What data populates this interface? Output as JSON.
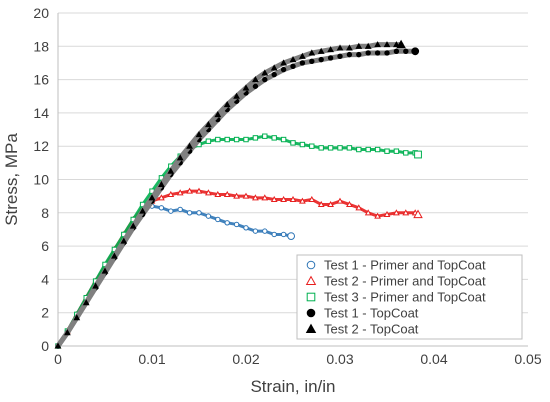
{
  "chart_data": {
    "type": "scatter",
    "xlabel": "Strain, in/in",
    "ylabel": "Stress, MPa",
    "xlim": [
      0,
      0.05
    ],
    "ylim": [
      0,
      20
    ],
    "x_ticks": [
      0,
      0.01,
      0.02,
      0.03,
      0.04,
      0.05
    ],
    "x_tick_labels": [
      "0",
      "0.01",
      "0.02",
      "0.03",
      "0.04",
      "0.05"
    ],
    "y_ticks": [
      0,
      2,
      4,
      6,
      8,
      10,
      12,
      14,
      16,
      18,
      20
    ],
    "y_tick_labels": [
      "0",
      "2",
      "4",
      "6",
      "8",
      "10",
      "12",
      "14",
      "16",
      "18",
      "20"
    ],
    "grid": "horizontal",
    "legend_position": "bottom-right",
    "series": [
      {
        "name": "Test 1 - Primer and TopCoat",
        "marker": "circle-open",
        "color": "#2e75b6",
        "points": [
          [
            0,
            0
          ],
          [
            0.001,
            0.9
          ],
          [
            0.002,
            1.9
          ],
          [
            0.003,
            2.9
          ],
          [
            0.004,
            3.9
          ],
          [
            0.005,
            4.8
          ],
          [
            0.006,
            5.7
          ],
          [
            0.007,
            6.6
          ],
          [
            0.008,
            7.4
          ],
          [
            0.009,
            8.1
          ],
          [
            0.0095,
            8.4
          ],
          [
            0.01,
            8.4
          ],
          [
            0.011,
            8.3
          ],
          [
            0.012,
            8.1
          ],
          [
            0.013,
            8.2
          ],
          [
            0.014,
            8.0
          ],
          [
            0.015,
            8.0
          ],
          [
            0.016,
            7.8
          ],
          [
            0.017,
            7.6
          ],
          [
            0.018,
            7.4
          ],
          [
            0.019,
            7.3
          ],
          [
            0.02,
            7.1
          ],
          [
            0.021,
            6.9
          ],
          [
            0.022,
            6.9
          ],
          [
            0.023,
            6.7
          ],
          [
            0.024,
            6.7
          ],
          [
            0.0248,
            6.6
          ]
        ]
      },
      {
        "name": "Test 2 - Primer and TopCoat",
        "marker": "triangle-open",
        "color": "#e81f1f",
        "points": [
          [
            0,
            0
          ],
          [
            0.001,
            0.9
          ],
          [
            0.002,
            1.9
          ],
          [
            0.003,
            2.9
          ],
          [
            0.004,
            3.9
          ],
          [
            0.005,
            4.8
          ],
          [
            0.006,
            5.8
          ],
          [
            0.007,
            6.7
          ],
          [
            0.008,
            7.6
          ],
          [
            0.009,
            8.3
          ],
          [
            0.01,
            8.7
          ],
          [
            0.011,
            8.9
          ],
          [
            0.012,
            9.1
          ],
          [
            0.013,
            9.2
          ],
          [
            0.014,
            9.3
          ],
          [
            0.015,
            9.3
          ],
          [
            0.016,
            9.2
          ],
          [
            0.017,
            9.1
          ],
          [
            0.018,
            9.1
          ],
          [
            0.019,
            9.0
          ],
          [
            0.02,
            9.0
          ],
          [
            0.021,
            8.9
          ],
          [
            0.022,
            8.9
          ],
          [
            0.023,
            8.8
          ],
          [
            0.024,
            8.8
          ],
          [
            0.025,
            8.8
          ],
          [
            0.026,
            8.7
          ],
          [
            0.027,
            8.8
          ],
          [
            0.028,
            8.5
          ],
          [
            0.029,
            8.5
          ],
          [
            0.03,
            8.7
          ],
          [
            0.031,
            8.5
          ],
          [
            0.032,
            8.3
          ],
          [
            0.033,
            8.0
          ],
          [
            0.034,
            7.8
          ],
          [
            0.035,
            7.9
          ],
          [
            0.036,
            8.0
          ],
          [
            0.037,
            8.0
          ],
          [
            0.038,
            8.0
          ],
          [
            0.0383,
            7.9
          ]
        ]
      },
      {
        "name": "Test 3 - Primer and TopCoat",
        "marker": "square-open",
        "color": "#00b050",
        "points": [
          [
            0,
            0
          ],
          [
            0.001,
            0.9
          ],
          [
            0.002,
            1.9
          ],
          [
            0.003,
            2.9
          ],
          [
            0.004,
            3.9
          ],
          [
            0.005,
            4.9
          ],
          [
            0.006,
            5.8
          ],
          [
            0.007,
            6.7
          ],
          [
            0.008,
            7.6
          ],
          [
            0.009,
            8.5
          ],
          [
            0.01,
            9.3
          ],
          [
            0.011,
            10.1
          ],
          [
            0.012,
            10.8
          ],
          [
            0.013,
            11.4
          ],
          [
            0.014,
            11.8
          ],
          [
            0.015,
            12.1
          ],
          [
            0.016,
            12.3
          ],
          [
            0.017,
            12.4
          ],
          [
            0.018,
            12.4
          ],
          [
            0.019,
            12.4
          ],
          [
            0.02,
            12.4
          ],
          [
            0.021,
            12.5
          ],
          [
            0.022,
            12.6
          ],
          [
            0.023,
            12.5
          ],
          [
            0.024,
            12.4
          ],
          [
            0.025,
            12.2
          ],
          [
            0.026,
            12.1
          ],
          [
            0.027,
            12.0
          ],
          [
            0.028,
            11.9
          ],
          [
            0.029,
            11.9
          ],
          [
            0.03,
            11.9
          ],
          [
            0.031,
            11.9
          ],
          [
            0.032,
            11.8
          ],
          [
            0.033,
            11.8
          ],
          [
            0.034,
            11.8
          ],
          [
            0.035,
            11.7
          ],
          [
            0.036,
            11.7
          ],
          [
            0.037,
            11.6
          ],
          [
            0.038,
            11.6
          ],
          [
            0.0383,
            11.5
          ]
        ]
      },
      {
        "name": "Test 1 - TopCoat",
        "marker": "circle-filled",
        "color": "#000000",
        "points": [
          [
            0,
            0
          ],
          [
            0.001,
            0.8
          ],
          [
            0.002,
            1.7
          ],
          [
            0.003,
            2.6
          ],
          [
            0.004,
            3.5
          ],
          [
            0.005,
            4.4
          ],
          [
            0.006,
            5.3
          ],
          [
            0.007,
            6.2
          ],
          [
            0.008,
            7.1
          ],
          [
            0.009,
            7.9
          ],
          [
            0.01,
            8.7
          ],
          [
            0.011,
            9.5
          ],
          [
            0.012,
            10.3
          ],
          [
            0.013,
            11.0
          ],
          [
            0.014,
            11.7
          ],
          [
            0.015,
            12.4
          ],
          [
            0.016,
            13.0
          ],
          [
            0.017,
            13.6
          ],
          [
            0.018,
            14.2
          ],
          [
            0.019,
            14.7
          ],
          [
            0.02,
            15.2
          ],
          [
            0.021,
            15.6
          ],
          [
            0.022,
            16.0
          ],
          [
            0.023,
            16.3
          ],
          [
            0.024,
            16.6
          ],
          [
            0.025,
            16.8
          ],
          [
            0.026,
            17.0
          ],
          [
            0.027,
            17.1
          ],
          [
            0.028,
            17.2
          ],
          [
            0.029,
            17.3
          ],
          [
            0.03,
            17.4
          ],
          [
            0.031,
            17.5
          ],
          [
            0.032,
            17.5
          ],
          [
            0.033,
            17.6
          ],
          [
            0.034,
            17.6
          ],
          [
            0.035,
            17.6
          ],
          [
            0.036,
            17.7
          ],
          [
            0.037,
            17.7
          ],
          [
            0.038,
            17.7
          ]
        ]
      },
      {
        "name": "Test 2 - TopCoat",
        "marker": "triangle-filled",
        "color": "#000000",
        "points": [
          [
            0,
            0
          ],
          [
            0.001,
            0.8
          ],
          [
            0.002,
            1.7
          ],
          [
            0.003,
            2.6
          ],
          [
            0.004,
            3.6
          ],
          [
            0.005,
            4.5
          ],
          [
            0.006,
            5.4
          ],
          [
            0.007,
            6.3
          ],
          [
            0.008,
            7.2
          ],
          [
            0.009,
            8.1
          ],
          [
            0.01,
            8.9
          ],
          [
            0.011,
            9.7
          ],
          [
            0.012,
            10.5
          ],
          [
            0.013,
            11.3
          ],
          [
            0.014,
            12.0
          ],
          [
            0.015,
            12.7
          ],
          [
            0.016,
            13.3
          ],
          [
            0.017,
            13.9
          ],
          [
            0.018,
            14.5
          ],
          [
            0.019,
            15.0
          ],
          [
            0.02,
            15.5
          ],
          [
            0.021,
            16.0
          ],
          [
            0.022,
            16.4
          ],
          [
            0.023,
            16.7
          ],
          [
            0.024,
            17.0
          ],
          [
            0.025,
            17.2
          ],
          [
            0.026,
            17.4
          ],
          [
            0.027,
            17.6
          ],
          [
            0.028,
            17.7
          ],
          [
            0.029,
            17.8
          ],
          [
            0.03,
            17.9
          ],
          [
            0.031,
            17.9
          ],
          [
            0.032,
            18.0
          ],
          [
            0.033,
            18.0
          ],
          [
            0.034,
            18.1
          ],
          [
            0.035,
            18.1
          ],
          [
            0.036,
            18.1
          ],
          [
            0.0365,
            18.1
          ]
        ]
      }
    ]
  }
}
